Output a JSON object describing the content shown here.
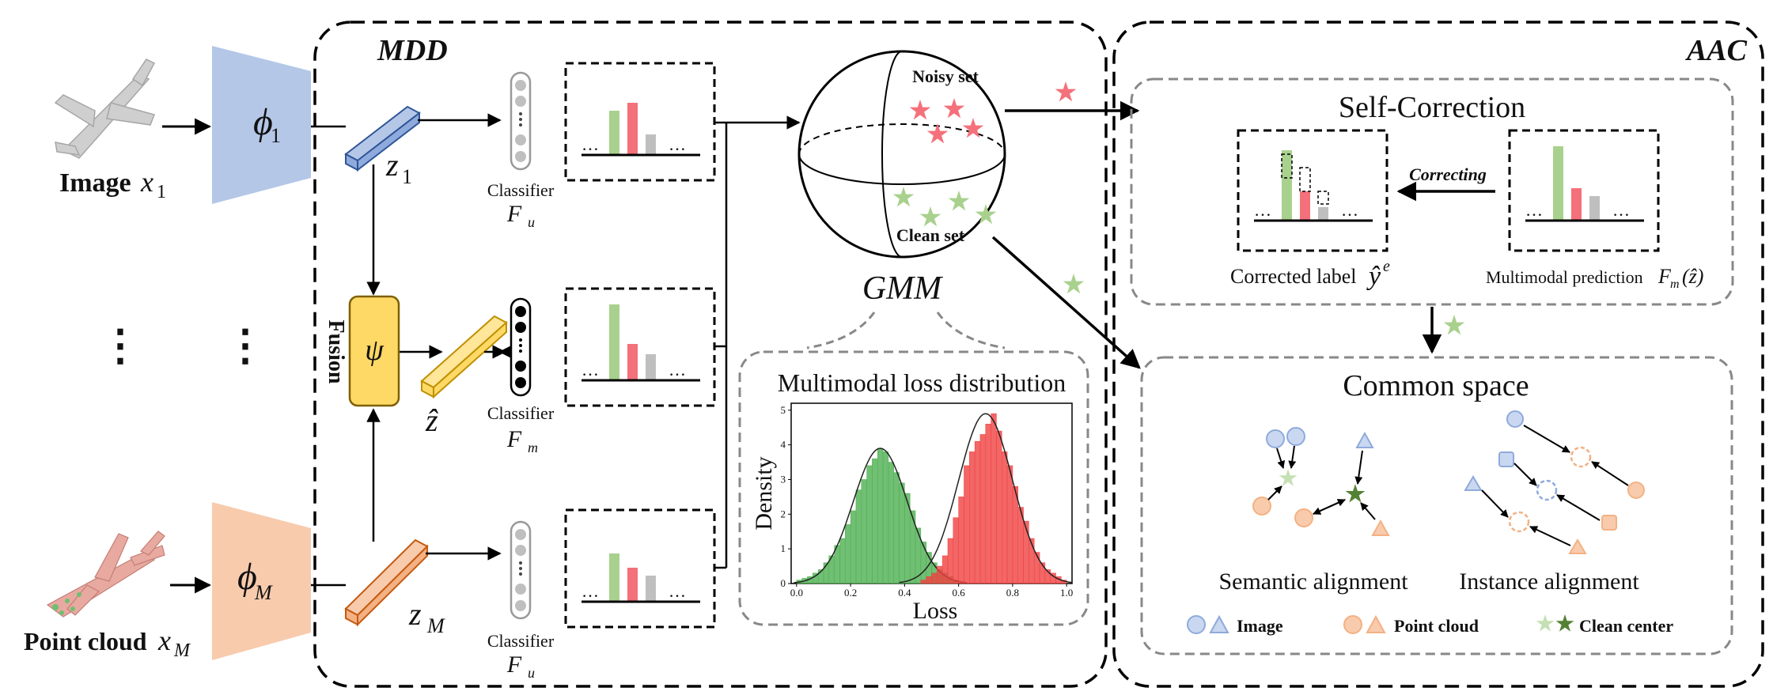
{
  "left": {
    "image_label": "Image",
    "image_var": "x",
    "image_sub": "1",
    "point_label": "Point cloud",
    "point_var": "x",
    "point_sub": "M",
    "phi1": "ϕ",
    "phi1_sub": "1",
    "phiM": "ϕ",
    "phiM_sub": "M",
    "vdots": "⋮"
  },
  "mdd": {
    "title": "MDD",
    "z1": "z",
    "z1_sub": "1",
    "zM": "z",
    "zM_sub": "M",
    "zhat": "ẑ",
    "fusion_label": "Fusion",
    "psi": "ψ",
    "classifier_label": "Classifier",
    "Fu": "F",
    "Fu_sub": "u",
    "Fm": "F",
    "Fm_sub": "m",
    "dots": "…",
    "noisy_set": "Noisy set",
    "clean_set": "Clean set",
    "gmm": "GMM",
    "loss_dist_title": "Multimodal loss distribution",
    "colors": {
      "green": "#a9d18e",
      "red": "#f4707a",
      "gray": "#bfbfbf",
      "blue": "#b4c7e7",
      "orange": "#f8cbad",
      "yellow": "#ffd966"
    }
  },
  "chart_data": {
    "type": "bar",
    "xlabel": "Loss",
    "ylabel": "Density",
    "xlim": [
      -0.02,
      1.02
    ],
    "ylim": [
      0,
      5.2
    ],
    "xticks": [
      "0.0",
      "0.2",
      "0.4",
      "0.6",
      "0.8",
      "1.0"
    ],
    "yticks": [
      "0",
      "1",
      "2",
      "3",
      "4",
      "5"
    ],
    "bin_width": 0.02,
    "series": [
      {
        "color": "#4caf50",
        "mu": 0.31,
        "sigma": 0.1,
        "x": [
          0.0,
          0.02,
          0.04,
          0.06,
          0.08,
          0.1,
          0.12,
          0.14,
          0.16,
          0.18,
          0.2,
          0.22,
          0.24,
          0.26,
          0.28,
          0.3,
          0.32,
          0.34,
          0.36,
          0.38,
          0.4,
          0.42,
          0.44,
          0.46,
          0.48,
          0.5,
          0.52,
          0.54,
          0.56,
          0.58
        ],
        "values": [
          0.1,
          0.15,
          0.2,
          0.3,
          0.4,
          0.6,
          0.8,
          1.1,
          1.3,
          1.7,
          2.1,
          2.7,
          3.0,
          3.4,
          3.6,
          3.9,
          3.8,
          3.5,
          3.2,
          2.9,
          2.6,
          2.1,
          1.6,
          1.2,
          0.9,
          0.6,
          0.4,
          0.3,
          0.2,
          0.1
        ]
      },
      {
        "color": "#f04040",
        "mu": 0.7,
        "sigma": 0.1,
        "x": [
          0.46,
          0.48,
          0.5,
          0.52,
          0.54,
          0.56,
          0.58,
          0.6,
          0.62,
          0.64,
          0.66,
          0.68,
          0.7,
          0.72,
          0.74,
          0.76,
          0.78,
          0.8,
          0.82,
          0.84,
          0.86,
          0.88,
          0.9,
          0.92,
          0.94,
          0.96,
          0.98
        ],
        "values": [
          0.1,
          0.2,
          0.3,
          0.5,
          0.8,
          1.3,
          1.9,
          2.5,
          3.4,
          3.8,
          4.1,
          4.3,
          4.6,
          4.9,
          4.4,
          3.8,
          3.4,
          2.8,
          2.2,
          1.8,
          1.3,
          0.9,
          0.6,
          0.4,
          0.3,
          0.2,
          0.1
        ]
      }
    ]
  },
  "aac": {
    "title": "AAC",
    "self_correction": "Self-Correction",
    "correcting": "Correcting",
    "corrected_label": "Corrected label",
    "yhat": "ŷ",
    "yhat_sup": "e",
    "multimodal_prediction": "Multimodal prediction",
    "Fm": "F",
    "Fm_sub": "m",
    "Fm_arg": "(ẑ)",
    "common_space": "Common space",
    "semantic_alignment": "Semantic alignment",
    "instance_alignment": "Instance alignment",
    "legend_image": "Image",
    "legend_point": "Point cloud",
    "legend_clean": "Clean center"
  }
}
